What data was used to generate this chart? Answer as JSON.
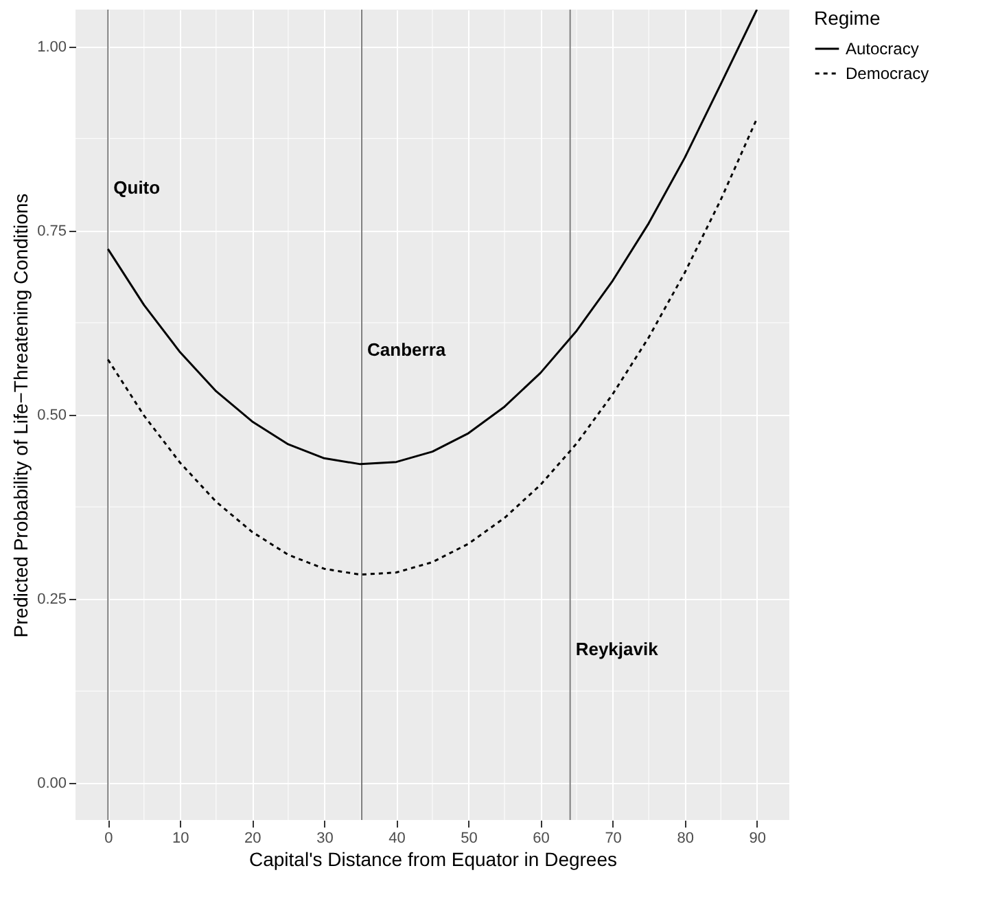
{
  "chart_data": {
    "type": "line",
    "xlabel": "Capital's Distance from Equator in Degrees",
    "ylabel": "Predicted Probability of Life−Threatening Conditions",
    "legend_title": "Regime",
    "x": [
      0,
      5,
      10,
      15,
      20,
      25,
      30,
      35,
      40,
      45,
      50,
      55,
      60,
      65,
      70,
      75,
      80,
      85,
      90
    ],
    "series": [
      {
        "name": "Autocracy",
        "color": "#000000",
        "line_style": "solid",
        "values": [
          0.725,
          0.649,
          0.585,
          0.532,
          0.491,
          0.46,
          0.441,
          0.433,
          0.436,
          0.45,
          0.475,
          0.511,
          0.557,
          0.614,
          0.682,
          0.76,
          0.849,
          0.949,
          1.05
        ]
      },
      {
        "name": "Democracy",
        "color": "#000000",
        "line_style": "dashed",
        "values": [
          0.575,
          0.499,
          0.435,
          0.382,
          0.341,
          0.31,
          0.291,
          0.283,
          0.286,
          0.3,
          0.325,
          0.36,
          0.405,
          0.461,
          0.528,
          0.605,
          0.693,
          0.792,
          0.902
        ]
      }
    ],
    "xlim": [
      -4.5,
      94.5
    ],
    "xticks": [
      0,
      10,
      20,
      30,
      40,
      50,
      60,
      70,
      80,
      90
    ],
    "ylim": [
      -0.05,
      1.05
    ],
    "yticks": [
      {
        "value": 0,
        "label": "0.00"
      },
      {
        "value": 0.25,
        "label": "0.25"
      },
      {
        "value": 0.5,
        "label": "0.50"
      },
      {
        "value": 0.75,
        "label": "0.75"
      },
      {
        "value": 1,
        "label": "1.00"
      }
    ],
    "ref_lines": [
      {
        "axis": "x",
        "value": 0,
        "label": "Quito",
        "color": "#7f7f7f"
      },
      {
        "axis": "x",
        "value": 35.2,
        "label": "Canberra",
        "color": "#7f7f7f"
      },
      {
        "axis": "x",
        "value": 64.1,
        "label": "Reykjavik",
        "color": "#7f7f7f"
      }
    ],
    "grid": true,
    "legend": "right"
  }
}
